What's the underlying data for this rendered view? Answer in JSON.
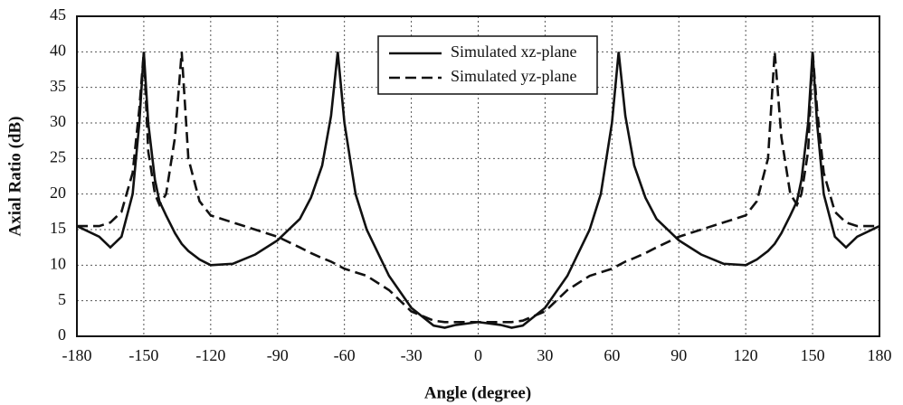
{
  "chart_data": {
    "type": "line",
    "xlabel": "Angle (degree)",
    "ylabel": "Axial Ratio (dB)",
    "x": [
      -180,
      -170,
      -165,
      -160,
      -155,
      -152,
      -150,
      -148,
      -145,
      -143,
      -140,
      -136,
      -133,
      -130,
      -125,
      -120,
      -110,
      -100,
      -90,
      -80,
      -75,
      -70,
      -66,
      -63,
      -60,
      -55,
      -50,
      -40,
      -30,
      -20,
      -15,
      -10,
      0,
      10,
      15,
      20,
      30,
      40,
      50,
      55,
      60,
      63,
      66,
      70,
      75,
      80,
      90,
      100,
      110,
      120,
      125,
      130,
      133,
      136,
      140,
      143,
      145,
      148,
      150,
      152,
      155,
      160,
      165,
      170,
      180
    ],
    "series": [
      {
        "name": "Simulated xz-plane",
        "color": "#111111",
        "dash": "solid",
        "values": [
          15.5,
          14,
          12.5,
          14,
          20,
          30,
          40,
          30,
          22,
          19,
          17,
          14.5,
          13,
          12,
          10.8,
          10,
          10.2,
          11.5,
          13.5,
          16.5,
          19.5,
          24,
          31,
          40,
          30,
          20,
          15,
          8.5,
          4,
          1.5,
          1.2,
          1.6,
          2,
          1.6,
          1.2,
          1.5,
          4,
          8.5,
          15,
          20,
          30,
          40,
          31,
          24,
          19.5,
          16.5,
          13.5,
          11.5,
          10.2,
          10,
          10.8,
          12,
          13,
          14.5,
          17,
          19,
          22,
          30,
          40,
          30,
          20,
          14,
          12.5,
          14,
          15.5
        ]
      },
      {
        "name": "Simulated yz-plane",
        "color": "#111111",
        "dash": "dashed",
        "values": [
          15.5,
          15.5,
          16,
          17.5,
          23,
          32,
          40,
          26,
          20,
          18.5,
          20,
          28,
          40,
          25,
          19,
          17,
          16,
          15,
          14,
          12.5,
          11.7,
          11,
          10.5,
          10,
          9.5,
          9,
          8.5,
          6.5,
          3.5,
          2.2,
          2,
          2,
          2,
          2,
          2,
          2.2,
          3.5,
          6.5,
          8.5,
          9,
          9.5,
          10,
          10.5,
          11,
          11.7,
          12.5,
          14,
          15,
          16,
          17,
          19,
          25,
          40,
          28,
          20,
          18.5,
          20,
          26,
          40,
          32,
          23,
          17.5,
          16,
          15.5,
          15.5
        ]
      }
    ],
    "xlim": [
      -180,
      180
    ],
    "xticks": [
      -180,
      -150,
      -120,
      -90,
      -60,
      -30,
      0,
      30,
      60,
      90,
      120,
      150,
      180
    ],
    "ylim": [
      0,
      45
    ],
    "yticks": [
      0,
      5,
      10,
      15,
      20,
      25,
      30,
      35,
      40,
      45
    ],
    "grid": true,
    "legend": "top-center"
  }
}
